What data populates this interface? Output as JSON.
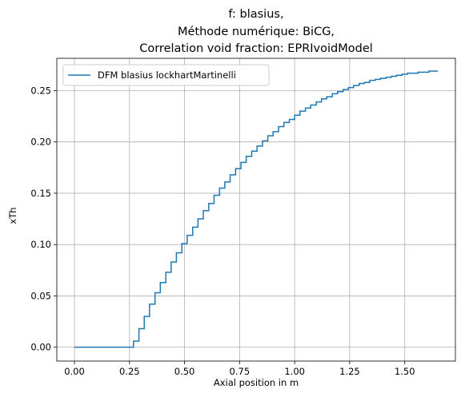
{
  "chart_data": {
    "type": "line",
    "title_lines": [
      "f: blasius,",
      "Méthode numérique: BiCG,",
      "Correlation void fraction: EPRIvoidModel"
    ],
    "xlabel": "Axial position in m",
    "ylabel": "xTh",
    "xlim": [
      -0.08,
      1.73
    ],
    "ylim": [
      -0.0135,
      0.2815
    ],
    "x_ticks": [
      0.0,
      0.25,
      0.5,
      0.75,
      1.0,
      1.25,
      1.5
    ],
    "x_tick_labels": [
      "0.00",
      "0.25",
      "0.50",
      "0.75",
      "1.00",
      "1.25",
      "1.50"
    ],
    "y_ticks": [
      0.0,
      0.05,
      0.1,
      0.15,
      0.2,
      0.25
    ],
    "y_tick_labels": [
      "0.00",
      "0.05",
      "0.10",
      "0.15",
      "0.20",
      "0.25"
    ],
    "grid": true,
    "legend_position": "upper-left",
    "series": [
      {
        "name": "DFM blasius lockhartMartinelli",
        "color": "#1f77b4",
        "step": true,
        "x": [
          0.0,
          0.024,
          0.049,
          0.073,
          0.098,
          0.122,
          0.146,
          0.171,
          0.195,
          0.22,
          0.244,
          0.268,
          0.293,
          0.317,
          0.341,
          0.366,
          0.39,
          0.415,
          0.439,
          0.463,
          0.488,
          0.512,
          0.537,
          0.561,
          0.585,
          0.61,
          0.634,
          0.659,
          0.683,
          0.707,
          0.732,
          0.756,
          0.78,
          0.805,
          0.829,
          0.854,
          0.878,
          0.902,
          0.927,
          0.951,
          0.976,
          1.0,
          1.024,
          1.049,
          1.073,
          1.098,
          1.122,
          1.146,
          1.171,
          1.195,
          1.22,
          1.244,
          1.268,
          1.293,
          1.317,
          1.341,
          1.366,
          1.39,
          1.415,
          1.439,
          1.463,
          1.488,
          1.512,
          1.537,
          1.561,
          1.585,
          1.61,
          1.634,
          1.65
        ],
        "y": [
          0.0,
          0.0,
          0.0,
          0.0,
          0.0,
          0.0,
          0.0,
          0.0,
          0.0,
          0.0,
          0.0,
          0.006,
          0.018,
          0.03,
          0.042,
          0.053,
          0.063,
          0.073,
          0.083,
          0.092,
          0.101,
          0.109,
          0.117,
          0.125,
          0.133,
          0.14,
          0.148,
          0.155,
          0.161,
          0.168,
          0.174,
          0.18,
          0.186,
          0.191,
          0.196,
          0.201,
          0.206,
          0.21,
          0.215,
          0.219,
          0.222,
          0.226,
          0.23,
          0.233,
          0.236,
          0.239,
          0.242,
          0.244,
          0.247,
          0.249,
          0.251,
          0.253,
          0.255,
          0.257,
          0.258,
          0.26,
          0.261,
          0.262,
          0.263,
          0.264,
          0.265,
          0.266,
          0.267,
          0.267,
          0.268,
          0.268,
          0.269,
          0.269,
          0.269
        ]
      }
    ]
  }
}
